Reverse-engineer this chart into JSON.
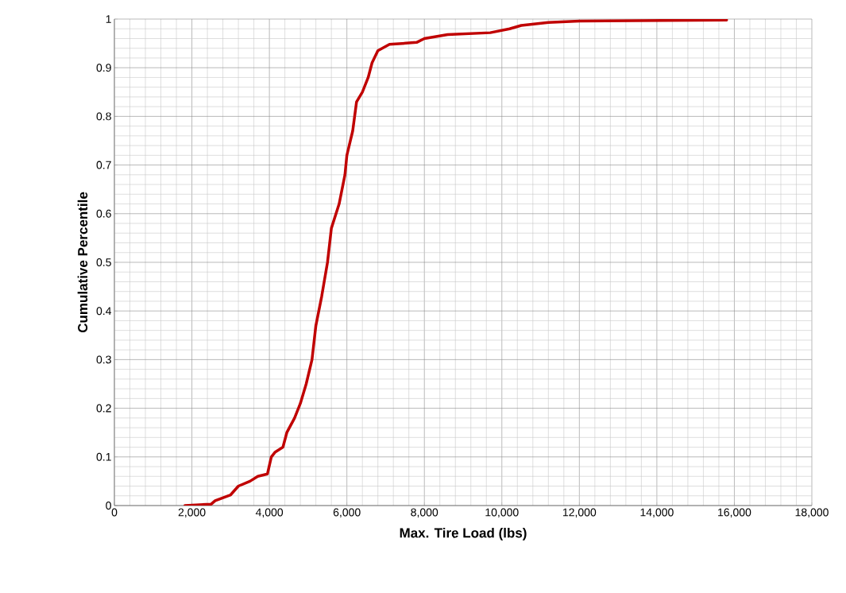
{
  "chart_data": {
    "type": "line",
    "xlabel": "Max. Tire Load (lbs)",
    "ylabel": "Cumulative Percentile",
    "xlim": [
      0,
      18000
    ],
    "ylim": [
      0,
      1
    ],
    "xticks": [
      0,
      {
        "value": 2000,
        "label": "2,000"
      },
      {
        "value": 4000,
        "label": "4,000"
      },
      {
        "value": 6000,
        "label": "6,000"
      },
      {
        "value": 8000,
        "label": "8,000"
      },
      {
        "value": 10000,
        "label": "10,000"
      },
      {
        "value": 12000,
        "label": "12,000"
      },
      {
        "value": 14000,
        "label": "14,000"
      },
      {
        "value": 16000,
        "label": "16,000"
      },
      {
        "value": 18000,
        "label": "18,000"
      }
    ],
    "yticks": [
      0,
      0.1,
      0.2,
      0.3,
      0.4,
      0.5,
      0.6,
      0.7,
      0.8,
      0.9,
      1
    ],
    "grid": true,
    "marker": "none",
    "line_style": "solid",
    "series": [
      {
        "color": "#c00000",
        "x": [
          1820,
          2500,
          2600,
          3000,
          3200,
          3500,
          3700,
          3950,
          4050,
          4150,
          4350,
          4450,
          4650,
          4800,
          4950,
          5100,
          5200,
          5350,
          5500,
          5600,
          5800,
          5950,
          6000,
          6150,
          6250,
          6400,
          6550,
          6650,
          6800,
          7100,
          7800,
          8000,
          8600,
          9700,
          10200,
          10500,
          11200,
          12000,
          15800
        ],
        "values": [
          0,
          0.003,
          0.01,
          0.022,
          0.04,
          0.05,
          0.06,
          0.065,
          0.1,
          0.11,
          0.12,
          0.15,
          0.18,
          0.21,
          0.25,
          0.3,
          0.37,
          0.43,
          0.5,
          0.57,
          0.62,
          0.68,
          0.72,
          0.77,
          0.83,
          0.85,
          0.88,
          0.91,
          0.935,
          0.948,
          0.952,
          0.96,
          0.968,
          0.972,
          0.98,
          0.987,
          0.993,
          0.996,
          0.998
        ]
      }
    ]
  }
}
